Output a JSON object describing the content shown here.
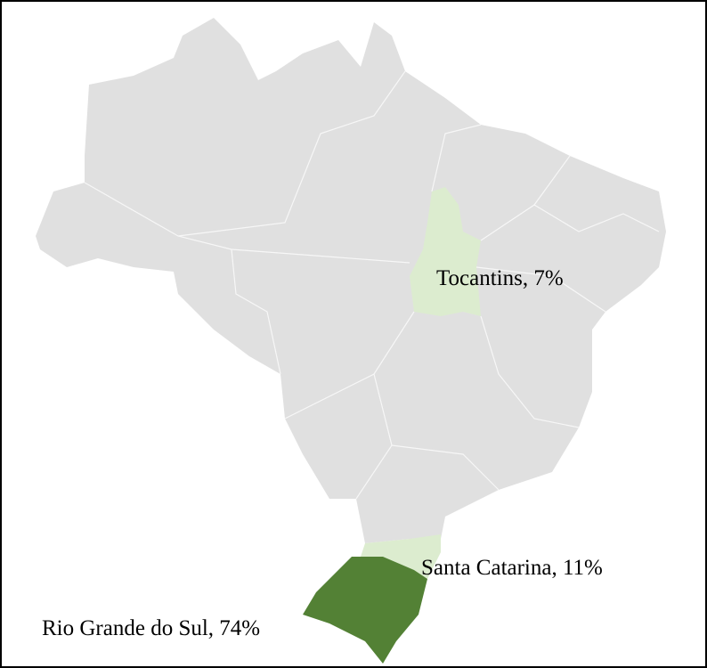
{
  "map": {
    "base_color": "#e0e0e0",
    "regions": [
      {
        "label": "Tocantins, 7%",
        "color": "#dceccf"
      },
      {
        "label": "Santa Catarina, 11%",
        "color": "#dceccf"
      },
      {
        "label": "Rio Grande do Sul, 74%",
        "color": "#538135"
      }
    ]
  }
}
